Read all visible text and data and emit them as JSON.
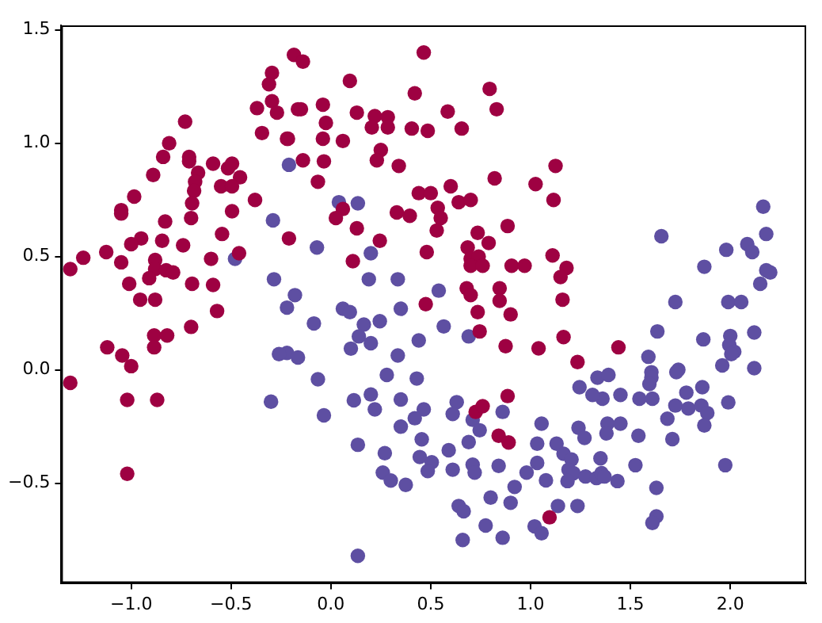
{
  "chart_data": {
    "type": "scatter",
    "marker": "circle",
    "grid": false,
    "legend": false,
    "xlim": [
      -1.35,
      2.38
    ],
    "ylim": [
      -0.94,
      1.52
    ],
    "xticks": [
      {
        "value": -1,
        "label": "−1.0"
      },
      {
        "value": -0.5,
        "label": "−0.5"
      },
      {
        "value": 0,
        "label": "0.0"
      },
      {
        "value": 0.5,
        "label": "0.5"
      },
      {
        "value": 1,
        "label": "1.0"
      },
      {
        "value": 1.5,
        "label": "1.5"
      },
      {
        "value": 2,
        "label": "2.0"
      }
    ],
    "yticks": [
      {
        "value": -0.5,
        "label": "−0.5"
      },
      {
        "value": 0,
        "label": "0.0"
      },
      {
        "value": 0.5,
        "label": "0.5"
      },
      {
        "value": 1,
        "label": "1.0"
      },
      {
        "value": 1.5,
        "label": "1.5"
      }
    ],
    "series": [
      {
        "color": "#9e0142",
        "x": [
          -0.185,
          -0.295,
          -0.31,
          -0.295,
          -0.37,
          -0.27,
          -0.165,
          -0.345,
          -0.22,
          -0.73,
          -0.81,
          -0.84,
          -0.71,
          -0.71,
          -0.665,
          -0.59,
          -0.515,
          -0.495,
          -0.455,
          -0.55,
          -0.495,
          -0.68,
          -0.685,
          -0.695,
          -0.89,
          -0.985,
          -1.05,
          -1.05,
          -0.38,
          -0.495,
          -0.7,
          -0.83,
          -0.545,
          -0.21,
          -0.95,
          -1.0,
          -0.845,
          -0.74,
          -0.46,
          -1.125,
          -1.24,
          -1.305,
          -1.05,
          -0.88,
          -0.6,
          -0.88,
          -0.825,
          -0.79,
          -0.91,
          -1.01,
          -0.695,
          -0.59,
          -0.955,
          -0.88,
          -0.14,
          0.465,
          0.095,
          0.42,
          0.795,
          0.83,
          0.585,
          0.655,
          -0.15,
          -0.04,
          -0.025,
          0.13,
          0.22,
          0.285,
          0.205,
          0.285,
          0.405,
          0.485,
          -0.215,
          -0.04,
          0.06,
          0.25,
          0.23,
          -0.14,
          -0.035,
          0.34,
          -0.065,
          0.82,
          1.025,
          0.6,
          0.44,
          0.5,
          0.64,
          0.7,
          0.535,
          0.55,
          0.53,
          0.33,
          0.395,
          0.06,
          0.025,
          0.13,
          0.735,
          0.885,
          0.245,
          0.48,
          0.685,
          0.79,
          0.11,
          0.7,
          0.74,
          0.7,
          0.76,
          0.905,
          0.97,
          0.68,
          0.845,
          0.475,
          0.7,
          0.845,
          0.9,
          0.735,
          0.745,
          0.875,
          1.04,
          0.885,
          0.725,
          0.76,
          0.84,
          0.89,
          1.125,
          1.115,
          1.11,
          1.18,
          1.15,
          1.16,
          1.165,
          1.235,
          1.44,
          1.095,
          -0.57,
          -0.7,
          -0.885,
          -0.82,
          -0.885,
          -1.12,
          -1.045,
          -1.0,
          -1.305,
          -1.02,
          -0.87,
          -1.02
        ],
        "values": [
          1.39,
          1.31,
          1.26,
          1.185,
          1.155,
          1.135,
          1.15,
          1.045,
          1.02,
          1.095,
          1.0,
          0.94,
          0.94,
          0.92,
          0.87,
          0.91,
          0.89,
          0.91,
          0.85,
          0.81,
          0.81,
          0.83,
          0.79,
          0.735,
          0.86,
          0.765,
          0.705,
          0.69,
          0.75,
          0.7,
          0.67,
          0.655,
          0.6,
          0.58,
          0.58,
          0.555,
          0.57,
          0.55,
          0.515,
          0.52,
          0.495,
          0.445,
          0.475,
          0.485,
          0.49,
          0.445,
          0.44,
          0.43,
          0.405,
          0.38,
          0.38,
          0.375,
          0.31,
          0.31,
          1.36,
          1.4,
          1.275,
          1.22,
          1.24,
          1.15,
          1.14,
          1.065,
          1.15,
          1.17,
          1.09,
          1.135,
          1.12,
          1.115,
          1.07,
          1.07,
          1.065,
          1.055,
          1.02,
          1.02,
          1.01,
          0.97,
          0.925,
          0.925,
          0.92,
          0.9,
          0.83,
          0.845,
          0.82,
          0.81,
          0.78,
          0.78,
          0.74,
          0.75,
          0.715,
          0.67,
          0.615,
          0.695,
          0.68,
          0.71,
          0.67,
          0.625,
          0.605,
          0.635,
          0.57,
          0.52,
          0.54,
          0.56,
          0.48,
          0.49,
          0.5,
          0.46,
          0.46,
          0.46,
          0.46,
          0.36,
          0.36,
          0.29,
          0.33,
          0.305,
          0.245,
          0.255,
          0.17,
          0.105,
          0.095,
          -0.115,
          -0.185,
          -0.16,
          -0.29,
          -0.32,
          0.9,
          0.75,
          0.505,
          0.45,
          0.41,
          0.31,
          0.145,
          0.035,
          0.1,
          -0.65,
          0.26,
          0.19,
          0.152,
          0.152,
          0.1,
          0.1,
          0.064,
          0.017,
          -0.057,
          -0.132,
          -0.132,
          -0.458
        ]
      },
      {
        "color": "#5e4fa2",
        "x": [
          -0.21,
          -0.29,
          -0.48,
          -0.285,
          -0.18,
          0.04,
          0.135,
          -0.07,
          0.2,
          0.19,
          0.335,
          0.54,
          2.165,
          1.655,
          2.18,
          1.98,
          2.085,
          2.11,
          1.87,
          2.18,
          2.2,
          2.15,
          1.725,
          1.99,
          2.055,
          1.635,
          1.865,
          2.0,
          1.995,
          2.02,
          2.005,
          1.96,
          2.12,
          2.12,
          1.59,
          1.605,
          1.605,
          1.595,
          1.74,
          1.73,
          1.86,
          1.78,
          1.99,
          1.725,
          1.79,
          1.855,
          1.885,
          1.685,
          1.87,
          1.71,
          1.545,
          1.61,
          1.45,
          1.36,
          1.31,
          1.245,
          1.335,
          1.39,
          1.055,
          1.24,
          1.27,
          1.385,
          1.45,
          1.38,
          1.54,
          1.033,
          1.13,
          1.165,
          1.205,
          1.033,
          1.077,
          1.19,
          1.215,
          1.275,
          1.33,
          1.355,
          1.37,
          1.185,
          1.35,
          1.435,
          1.525,
          1.63,
          1.63,
          1.61,
          1.975,
          1.137,
          1.235,
          1.02,
          1.055,
          -0.22,
          0.06,
          0.095,
          -0.085,
          0.165,
          0.14,
          0.245,
          0.35,
          0.565,
          0.44,
          0.69,
          0.2,
          0.1,
          -0.22,
          -0.165,
          0.335,
          -0.065,
          0.28,
          0.43,
          0.2,
          0.115,
          0.22,
          -0.035,
          0.35,
          0.465,
          0.42,
          0.35,
          0.63,
          0.61,
          0.71,
          0.745,
          0.86,
          0.135,
          0.27,
          0.455,
          0.69,
          0.59,
          0.445,
          0.505,
          0.485,
          0.61,
          0.71,
          0.72,
          0.84,
          0.98,
          0.92,
          0.9,
          0.8,
          0.26,
          0.3,
          0.375,
          0.64,
          0.665,
          0.775,
          0.86,
          0.66,
          0.135,
          -0.26,
          -0.3
        ],
        "values": [
          0.905,
          0.66,
          0.49,
          0.4,
          0.33,
          0.74,
          0.735,
          0.54,
          0.515,
          0.4,
          0.4,
          0.35,
          0.72,
          0.59,
          0.6,
          0.53,
          0.555,
          0.52,
          0.455,
          0.44,
          0.43,
          0.38,
          0.3,
          0.3,
          0.3,
          0.17,
          0.135,
          0.15,
          0.11,
          0.08,
          0.07,
          0.02,
          0.165,
          0.008,
          0.058,
          -0.01,
          -0.034,
          -0.062,
          0.001,
          -0.01,
          -0.076,
          -0.1,
          -0.143,
          -0.157,
          -0.17,
          -0.157,
          -0.19,
          -0.215,
          -0.245,
          -0.305,
          -0.127,
          -0.127,
          -0.11,
          -0.127,
          -0.11,
          -0.076,
          -0.034,
          -0.022,
          -0.237,
          -0.255,
          -0.3,
          -0.237,
          -0.237,
          -0.28,
          -0.29,
          -0.325,
          -0.325,
          -0.37,
          -0.395,
          -0.41,
          -0.487,
          -0.44,
          -0.455,
          -0.47,
          -0.477,
          -0.455,
          -0.47,
          -0.49,
          -0.39,
          -0.49,
          -0.42,
          -0.52,
          -0.646,
          -0.675,
          -0.42,
          -0.6,
          -0.6,
          -0.69,
          -0.72,
          0.275,
          0.27,
          0.255,
          0.205,
          0.2,
          0.148,
          0.215,
          0.27,
          0.192,
          0.13,
          0.148,
          0.118,
          0.094,
          0.075,
          0.055,
          0.064,
          -0.041,
          -0.022,
          -0.038,
          -0.108,
          -0.134,
          -0.174,
          -0.2,
          -0.13,
          -0.174,
          -0.213,
          -0.25,
          -0.142,
          -0.194,
          -0.22,
          -0.266,
          -0.185,
          -0.33,
          -0.367,
          -0.306,
          -0.318,
          -0.354,
          -0.384,
          -0.407,
          -0.446,
          -0.44,
          -0.418,
          -0.453,
          -0.423,
          -0.453,
          -0.516,
          -0.586,
          -0.563,
          -0.453,
          -0.488,
          -0.507,
          -0.6,
          -0.623,
          -0.686,
          -0.74,
          -0.75,
          -0.82,
          0.07,
          -0.14
        ]
      }
    ]
  }
}
